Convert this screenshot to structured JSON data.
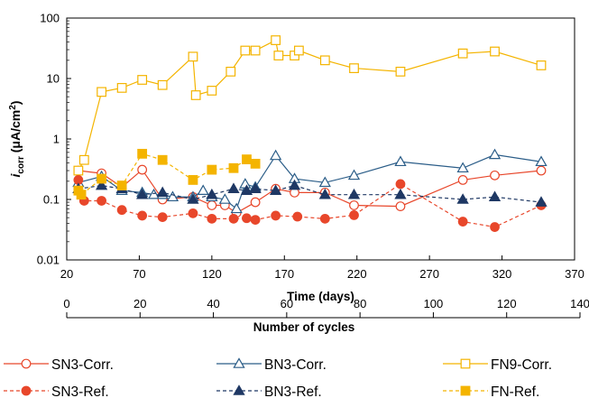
{
  "chart_data": {
    "type": "line",
    "y_scale": "log",
    "ylim": [
      0.01,
      100
    ],
    "xlim": [
      20,
      370
    ],
    "x_ticks": [
      20,
      70,
      120,
      170,
      220,
      270,
      320,
      370
    ],
    "x_tick_labels": [
      "20",
      "70",
      "120",
      "170",
      "220",
      "270",
      "320",
      "370"
    ],
    "y_ticks": [
      0.01,
      0.1,
      1,
      10,
      100
    ],
    "y_tick_labels": [
      "0.01",
      "0.1",
      "1",
      "10",
      "100"
    ],
    "xlabel": "Time (days)",
    "ylabel_main": "i",
    "ylabel_sub": "corr",
    "ylabel_unit_prefix": " (μA/cm",
    "ylabel_unit_sup": "2",
    "ylabel_unit_suffix": ")",
    "secondary_xlabel": "Number of cycles",
    "secondary_xlim": [
      0,
      140
    ],
    "secondary_x_ticks": [
      0,
      20,
      40,
      60,
      80,
      100,
      120,
      140
    ],
    "secondary_x_tick_labels": [
      "0",
      "20",
      "40",
      "60",
      "80",
      "100",
      "120",
      "140"
    ],
    "grid": false,
    "legend_placement": "bottom",
    "series": [
      {
        "name": "SN3-Corr.",
        "color": "#e8472b",
        "line": "solid",
        "marker": "circle-open",
        "x": [
          28,
          44,
          58,
          72,
          86,
          107,
          120,
          129,
          137,
          150,
          164,
          177,
          198,
          218,
          250,
          293,
          315,
          347
        ],
        "y": [
          0.3,
          0.27,
          0.16,
          0.31,
          0.1,
          0.11,
          0.08,
          0.08,
          0.06,
          0.09,
          0.15,
          0.13,
          0.13,
          0.08,
          0.077,
          0.21,
          0.25,
          0.3
        ]
      },
      {
        "name": "BN3-Corr.",
        "color": "#2b5d88",
        "line": "solid",
        "marker": "triangle-open",
        "x": [
          28,
          44,
          58,
          72,
          80,
          86,
          93,
          107,
          114,
          120,
          129,
          137,
          143,
          150,
          164,
          177,
          198,
          218,
          250,
          293,
          315,
          347
        ],
        "y": [
          0.19,
          0.24,
          0.14,
          0.13,
          0.12,
          0.12,
          0.11,
          0.11,
          0.14,
          0.11,
          0.1,
          0.07,
          0.18,
          0.16,
          0.53,
          0.22,
          0.19,
          0.25,
          0.42,
          0.33,
          0.55,
          0.42
        ]
      },
      {
        "name": "FN9-Corr.",
        "color": "#f4b400",
        "line": "solid",
        "marker": "square-open",
        "x": [
          28,
          32,
          44,
          58,
          72,
          86,
          107,
          109,
          120,
          133,
          143,
          150,
          164,
          166,
          177,
          180,
          198,
          218,
          250,
          293,
          315,
          347
        ],
        "y": [
          0.3,
          0.45,
          6,
          7,
          9.5,
          7.8,
          23,
          5.3,
          6.3,
          13,
          29,
          29,
          43,
          24,
          24,
          29,
          20,
          14.8,
          13,
          26,
          28,
          16.5
        ]
      },
      {
        "name": "SN3-Ref.",
        "color": "#e8472b",
        "line": "dashed",
        "marker": "circle-filled",
        "x": [
          28,
          32,
          44,
          58,
          72,
          86,
          107,
          120,
          135,
          144,
          150,
          164,
          179,
          198,
          218,
          250,
          293,
          315,
          347
        ],
        "y": [
          0.21,
          0.095,
          0.095,
          0.067,
          0.054,
          0.051,
          0.059,
          0.048,
          0.048,
          0.049,
          0.046,
          0.054,
          0.052,
          0.048,
          0.055,
          0.18,
          0.043,
          0.035,
          0.08
        ]
      },
      {
        "name": "BN3-Ref.",
        "color": "#1f3864",
        "line": "dashed",
        "marker": "triangle-filled",
        "x": [
          28,
          44,
          58,
          72,
          86,
          107,
          120,
          135,
          144,
          150,
          164,
          177,
          198,
          218,
          250,
          293,
          315,
          347
        ],
        "y": [
          0.15,
          0.17,
          0.15,
          0.12,
          0.13,
          0.1,
          0.12,
          0.15,
          0.14,
          0.15,
          0.14,
          0.17,
          0.12,
          0.12,
          0.12,
          0.1,
          0.11,
          0.09
        ]
      },
      {
        "name": "FN-Ref.",
        "color": "#f4b400",
        "line": "dashed",
        "marker": "square-filled",
        "x": [
          28,
          30,
          44,
          58,
          72,
          86,
          107,
          120,
          135,
          144,
          150
        ],
        "y": [
          0.14,
          0.12,
          0.22,
          0.17,
          0.57,
          0.45,
          0.21,
          0.31,
          0.33,
          0.46,
          0.39
        ]
      }
    ]
  }
}
